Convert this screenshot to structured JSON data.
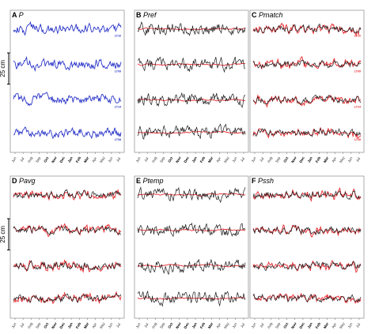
{
  "scale_bar": {
    "label": "25 cm"
  },
  "colors": {
    "observed": "#2b35c8",
    "reference": "#1a1a1a",
    "model": "#e8282e",
    "frame": "#999999"
  },
  "chart_data": [
    {
      "type": "line",
      "panel": "A",
      "title": "P",
      "x_ticks": [
        "Jun",
        "Jul",
        "Aug",
        "Sep",
        "Oct",
        "Nov",
        "Dec",
        "Jan",
        "Feb",
        "Mar",
        "Apr",
        "May",
        "Jun",
        "Jul"
      ],
      "bold_ticks": [
        "Oct",
        "Nov",
        "Dec",
        "Jan",
        "Feb",
        "Mar"
      ],
      "series": [
        {
          "color": "observed"
        }
      ],
      "traces": [
        "LT10",
        "LT09",
        "LT14",
        "LT08"
      ],
      "trace_labels": [
        "LT10",
        "LT09",
        "LT14",
        "LT08"
      ]
    },
    {
      "type": "line",
      "panel": "B",
      "title": "Pref",
      "x_ticks": [
        "Jun",
        "Jul",
        "Aug",
        "Sep",
        "Oct",
        "Nov",
        "Dec",
        "Jan",
        "Feb",
        "Mar",
        "Apr",
        "May",
        "Jun",
        "Jul"
      ],
      "bold_ticks": [
        "Oct",
        "Nov",
        "Dec",
        "Jan",
        "Feb",
        "Mar"
      ],
      "series": [
        {
          "color": "reference"
        },
        {
          "color": "model"
        }
      ],
      "traces": [
        "LT10",
        "LT09",
        "LT14",
        "LT08"
      ],
      "trace_labels": []
    },
    {
      "type": "line",
      "panel": "C",
      "title": "Pmatch",
      "x_ticks": [
        "Jun",
        "Jul",
        "Aug",
        "Sep",
        "Oct",
        "Nov",
        "Dec",
        "Jan",
        "Feb",
        "Mar",
        "Apr",
        "May",
        "Jun",
        "Jul"
      ],
      "bold_ticks": [
        "Oct",
        "Nov",
        "Dec",
        "Jan",
        "Feb",
        "Mar"
      ],
      "series": [
        {
          "color": "reference"
        },
        {
          "color": "model"
        }
      ],
      "traces": [
        "LT10",
        "LT09",
        "LT14",
        "LT08"
      ],
      "trace_labels": [
        "LT10",
        "LT09",
        "LT14",
        "LT08"
      ]
    },
    {
      "type": "line",
      "panel": "D",
      "title": "Pavg",
      "x_ticks": [
        "Jun",
        "Jul",
        "Aug",
        "Sep",
        "Oct",
        "Nov",
        "Dec",
        "Jan",
        "Feb",
        "Mar",
        "Apr",
        "May",
        "Jun",
        "Jul"
      ],
      "bold_ticks": [
        "Oct",
        "Nov",
        "Dec",
        "Jan",
        "Feb",
        "Mar"
      ],
      "series": [
        {
          "color": "reference"
        },
        {
          "color": "model"
        }
      ],
      "traces": [
        "LT10",
        "LT09",
        "LT14",
        "LT08"
      ],
      "trace_labels": []
    },
    {
      "type": "line",
      "panel": "E",
      "title": "Ptemp",
      "x_ticks": [
        "Jun",
        "Jul",
        "Aug",
        "Sep",
        "Oct",
        "Nov",
        "Dec",
        "Jan",
        "Feb",
        "Mar",
        "Apr",
        "May",
        "Jun",
        "Jul"
      ],
      "bold_ticks": [
        "Oct",
        "Nov",
        "Dec",
        "Jan",
        "Feb",
        "Mar"
      ],
      "series": [
        {
          "color": "reference"
        },
        {
          "color": "model"
        }
      ],
      "traces": [
        "LT10",
        "LT09",
        "LT14",
        "LT08"
      ],
      "trace_labels": []
    },
    {
      "type": "line",
      "panel": "F",
      "title": "Pssh",
      "x_ticks": [
        "Jun",
        "Jul",
        "Aug",
        "Sep",
        "Oct",
        "Nov",
        "Dec",
        "Jan",
        "Feb",
        "Mar",
        "Apr",
        "May",
        "Jun",
        "Jul"
      ],
      "bold_ticks": [
        "Oct",
        "Nov",
        "Dec",
        "Jan",
        "Feb",
        "Mar"
      ],
      "series": [
        {
          "color": "reference"
        },
        {
          "color": "model"
        }
      ],
      "traces": [
        "LT10",
        "LT09",
        "LT14",
        "LT08"
      ],
      "trace_labels": []
    }
  ]
}
